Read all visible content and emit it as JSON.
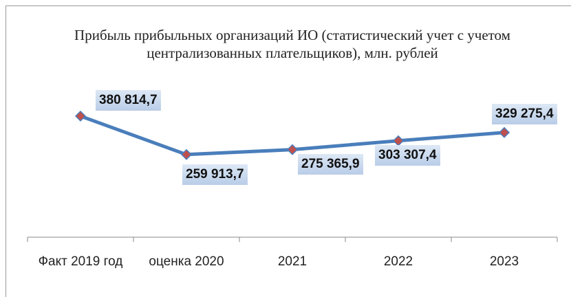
{
  "chart_data": {
    "type": "line",
    "title": "Прибыль прибыльных организаций ИО (статистический учет с учетом централизованных  плательщиков), млн. рублей",
    "categories": [
      "Факт 2019 год",
      "оценка 2020",
      "2021",
      "2022",
      "2023"
    ],
    "series": [
      {
        "name": "Прибыль",
        "color": "#4a7ebb",
        "marker_color": "#c0504d",
        "values": [
          380814.7,
          259913.7,
          275365.9,
          303307.4,
          329275.4
        ],
        "value_labels": [
          "380 814,7",
          "259 913,7",
          "275 365,9",
          "303 307,4",
          "329 275,4"
        ]
      }
    ],
    "ylim": [
      0,
      400000
    ]
  }
}
